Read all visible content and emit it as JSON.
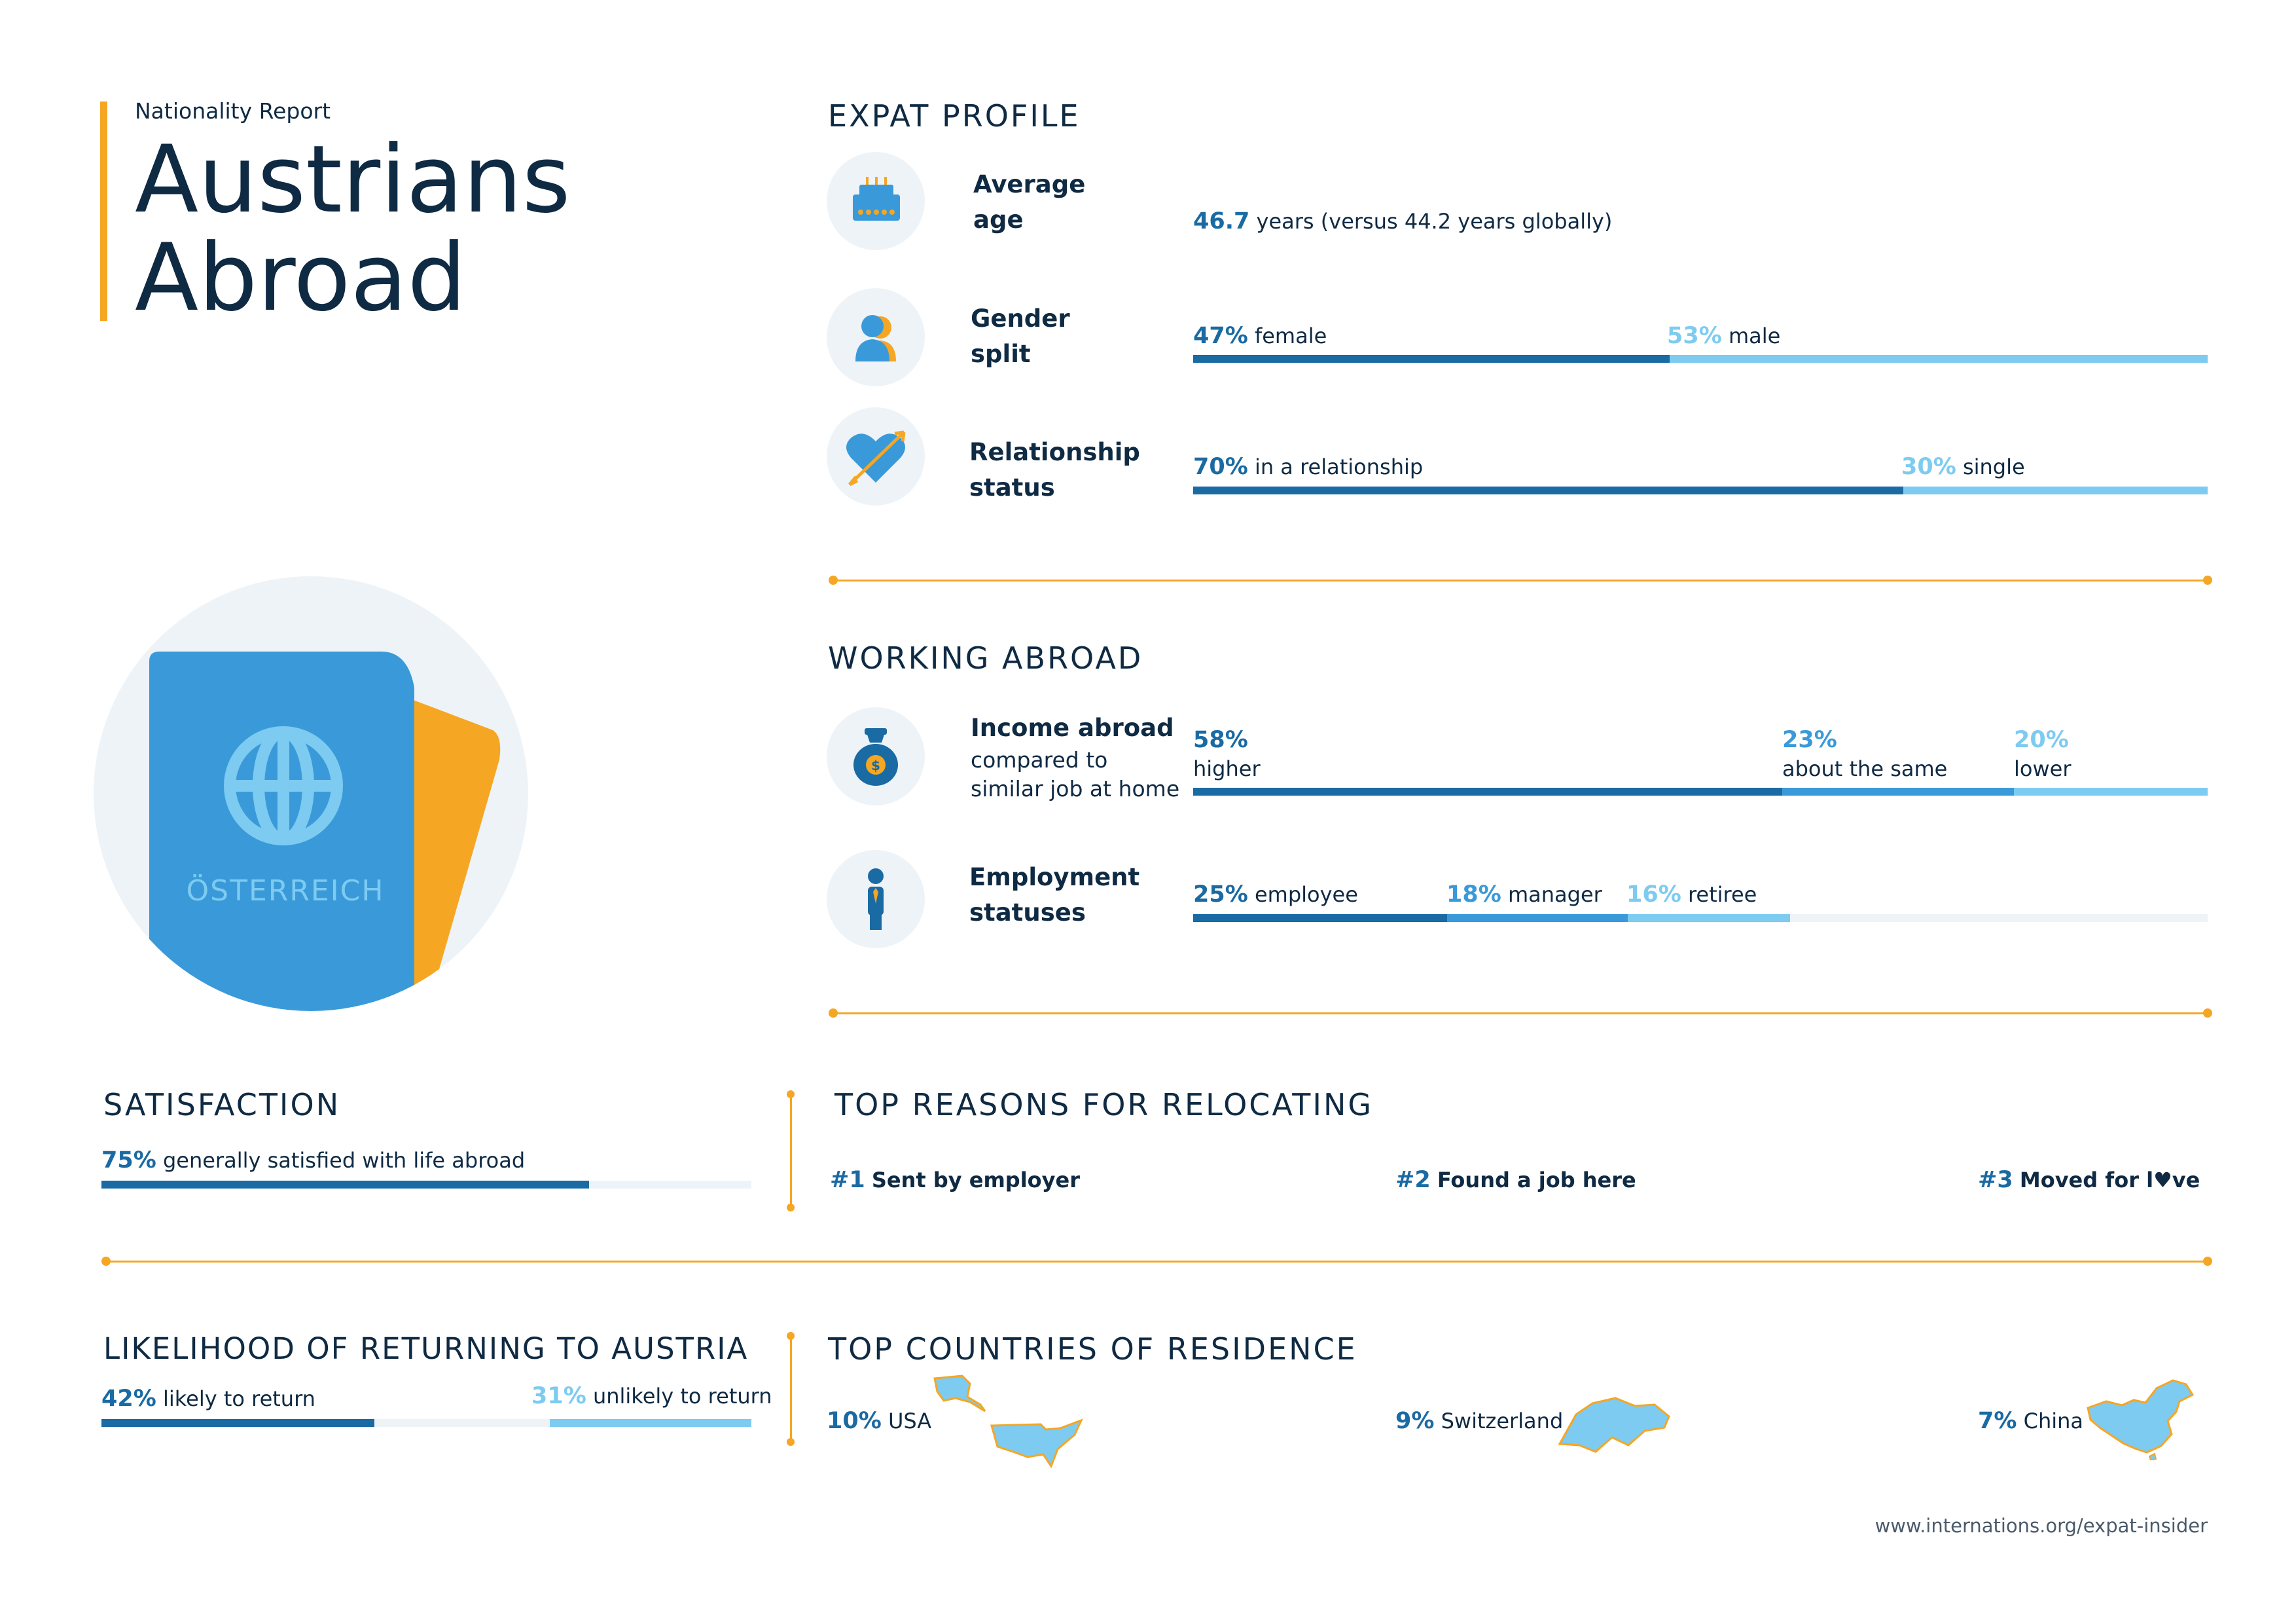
{
  "header": {
    "kicker": "Nationality Report",
    "title_line1": "Austrians",
    "title_line2": "Abroad"
  },
  "passport": {
    "text": "ÖSTERREICH"
  },
  "colors": {
    "accent": "#f5a623",
    "dark_blue": "#1a6aa3",
    "mid_blue": "#3a9ad9",
    "light_blue": "#7dcbf1",
    "navy": "#0f2a43"
  },
  "expat_profile": {
    "title": "EXPAT PROFILE",
    "age": {
      "label1": "Average",
      "label2": "age",
      "value": "46.7",
      "text": "years (versus 44.2 years globally)",
      "icon": "cake-icon"
    },
    "gender": {
      "label1": "Gender",
      "label2": "split",
      "female_pct": "47%",
      "female_text": "female",
      "male_pct": "53%",
      "male_text": "male",
      "female_share": 0.47,
      "icon": "person-icon"
    },
    "relationship": {
      "label1": "Relationship",
      "label2": "status",
      "rel_pct": "70%",
      "rel_text": "in a relationship",
      "single_pct": "30%",
      "single_text": "single",
      "rel_share": 0.7,
      "icon": "heart-icon"
    }
  },
  "working_abroad": {
    "title": "WORKING ABROAD",
    "income": {
      "label": "Income abroad",
      "sub1": "compared to",
      "sub2": "similar job at home",
      "higher_pct": "58%",
      "higher_text": "higher",
      "same_pct": "23%",
      "same_text": "about the same",
      "lower_pct": "20%",
      "lower_text": "lower",
      "shares": [
        0.58,
        0.23,
        0.2
      ],
      "icon": "money-bag-icon"
    },
    "employment": {
      "label1": "Employment",
      "label2": "statuses",
      "employee_pct": "25%",
      "employee_text": "employee",
      "manager_pct": "18%",
      "manager_text": "manager",
      "retiree_pct": "16%",
      "retiree_text": "retiree",
      "shares": [
        0.25,
        0.18,
        0.16
      ],
      "icon": "businessman-icon"
    }
  },
  "satisfaction": {
    "title": "SATISFACTION",
    "pct": "75%",
    "text": "generally satisfied with life abroad",
    "share": 0.75
  },
  "reasons": {
    "title": "TOP REASONS FOR RELOCATING",
    "items": [
      {
        "rank": "#1",
        "text": "Sent by employer"
      },
      {
        "rank": "#2",
        "text": "Found a job here"
      },
      {
        "rank": "#3",
        "text_a": "Moved for l",
        "text_b": "ve"
      }
    ]
  },
  "returning": {
    "title": "LIKELIHOOD OF RETURNING TO AUSTRIA",
    "likely_pct": "42%",
    "likely_text": "likely to return",
    "unlikely_pct": "31%",
    "unlikely_text": "unlikely to return",
    "likely_share": 0.42,
    "unlikely_share": 0.31
  },
  "countries": {
    "title": "TOP COUNTRIES OF RESIDENCE",
    "items": [
      {
        "pct": "10%",
        "name": "USA",
        "icon": "usa-map-icon"
      },
      {
        "pct": "9%",
        "name": "Switzerland",
        "icon": "switzerland-map-icon"
      },
      {
        "pct": "7%",
        "name": "China",
        "icon": "china-map-icon"
      }
    ]
  },
  "footer": {
    "url": "www.internations.org/expat-insider"
  }
}
